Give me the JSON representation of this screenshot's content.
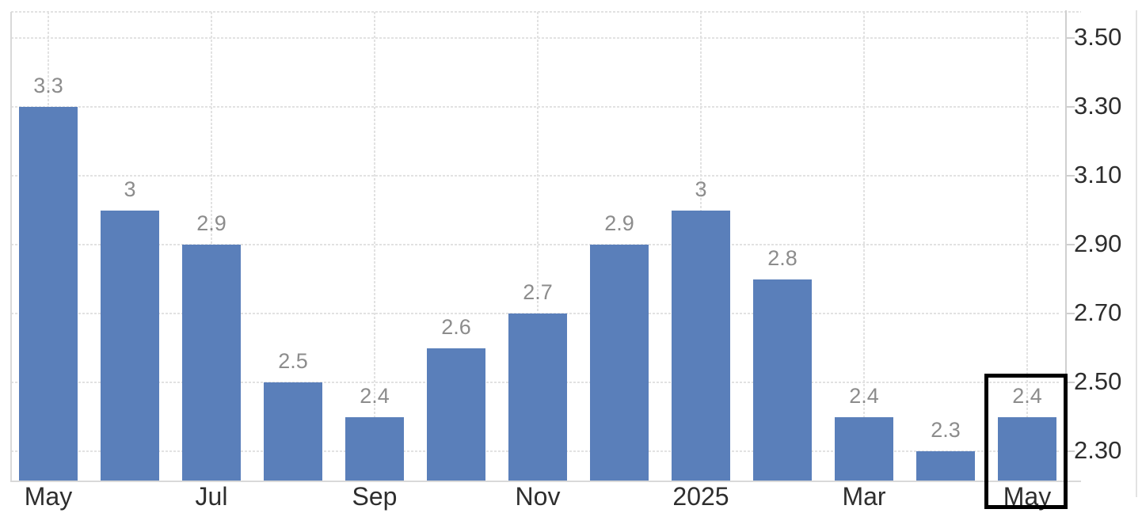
{
  "chart_data": {
    "type": "bar",
    "title": "",
    "categories": [
      "May",
      "",
      "Jul",
      "",
      "Sep",
      "",
      "Nov",
      "",
      "2025",
      "",
      "Mar",
      "",
      "May"
    ],
    "values": [
      3.3,
      3,
      2.9,
      2.5,
      2.4,
      2.6,
      2.7,
      2.9,
      3,
      2.8,
      2.4,
      2.3,
      2.4
    ],
    "bar_value_labels": [
      "3.3",
      "3",
      "2.9",
      "2.5",
      "2.4",
      "2.6",
      "2.7",
      "2.9",
      "3",
      "2.8",
      "2.4",
      "2.3",
      "2.4"
    ],
    "x_tick_labels": [
      "May",
      "Jul",
      "Sep",
      "Nov",
      "2025",
      "Mar",
      "May"
    ],
    "y_tick_labels": [
      "3.50",
      "3.30",
      "3.10",
      "2.90",
      "2.70",
      "2.50",
      "2.30"
    ],
    "y_tick_values": [
      3.5,
      3.3,
      3.1,
      2.9,
      2.7,
      2.5,
      2.3
    ],
    "ylim": [
      2.215,
      3.576
    ],
    "y_axis_side": "right",
    "grid": "dotted",
    "legend": "none",
    "highlighted_index": 12,
    "highlighted_category": "May",
    "highlighted_value": 2.4,
    "colors": {
      "bar": "#5A7FBA",
      "bar_value_label": "#8C8C8C",
      "x_tick_label": "#2E2E2E",
      "y_tick_label": "#2E2E2E",
      "gridline": "#E2E2E2",
      "axis_line": "#D9D9D9",
      "right_axis_line": "#D0D0D0",
      "container_border": "#E3E3E3",
      "tick_mark": "#CFCFCF",
      "highlight_box": "#000000",
      "background": "#FFFFFF"
    }
  }
}
